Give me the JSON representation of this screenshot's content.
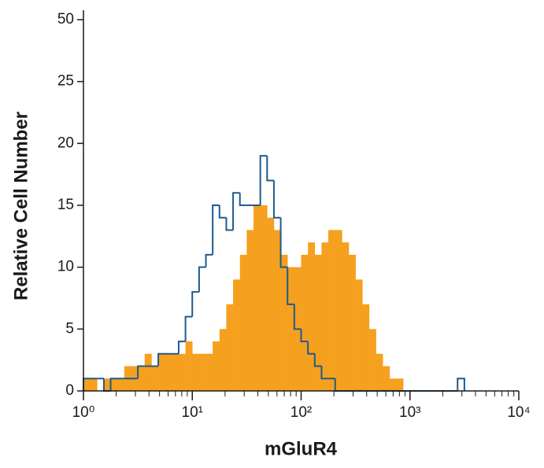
{
  "chart_data": {
    "type": "histogram",
    "xlabel": "mGluR4",
    "ylabel": "Relative Cell Number",
    "xscale": "log",
    "xlim": [
      1,
      10000
    ],
    "ylim": [
      0,
      50
    ],
    "xticks": [
      {
        "value": 1,
        "label": "10⁰"
      },
      {
        "value": 10,
        "label": "10¹"
      },
      {
        "value": 100,
        "label": "10²"
      },
      {
        "value": 1000,
        "label": "10³"
      },
      {
        "value": 10000,
        "label": "10⁴"
      }
    ],
    "minor_xticks": [
      2,
      3,
      4,
      5,
      6,
      7,
      8,
      9,
      20,
      30,
      40,
      50,
      60,
      70,
      80,
      90,
      200,
      300,
      400,
      500,
      600,
      700,
      800,
      900,
      2000,
      3000,
      4000,
      5000,
      6000,
      7000,
      8000,
      9000
    ],
    "yticks": [
      0,
      5,
      10,
      15,
      20,
      25,
      50
    ],
    "bins": [
      1,
      1.155,
      1.334,
      1.54,
      1.778,
      2.054,
      2.371,
      2.738,
      3.162,
      3.652,
      4.217,
      4.87,
      5.623,
      6.494,
      7.499,
      8.66,
      10,
      11.55,
      13.34,
      15.4,
      17.78,
      20.54,
      23.71,
      27.38,
      31.62,
      36.52,
      42.17,
      48.7,
      56.23,
      64.94,
      74.99,
      86.6,
      100,
      115.5,
      133.4,
      154,
      177.8,
      205.4,
      237.1,
      273.8,
      316.2,
      365.2,
      421.7,
      487,
      562.3,
      649.4,
      749.9,
      866,
      1000,
      1155,
      1334,
      1540,
      1778,
      2054,
      2371,
      2738,
      3162
    ],
    "series": [
      {
        "color": "#f5a01e",
        "fill": true,
        "values": [
          1,
          1,
          0,
          1,
          1,
          1,
          2,
          2,
          2,
          3,
          2,
          3,
          3,
          3,
          3,
          4,
          3,
          3,
          3,
          4,
          5,
          7,
          9,
          11,
          13,
          15,
          15,
          14,
          13,
          11,
          10,
          10,
          11,
          12,
          11,
          12,
          13,
          13,
          12,
          11,
          9,
          7,
          5,
          3,
          2,
          1,
          1,
          0,
          0,
          0,
          0,
          0,
          0,
          0,
          0,
          0
        ]
      },
      {
        "color": "#1f5a8c",
        "fill": false,
        "values": [
          1,
          1,
          1,
          0,
          1,
          1,
          1,
          1,
          2,
          2,
          2,
          3,
          3,
          3,
          4,
          6,
          8,
          10,
          11,
          15,
          14,
          13,
          16,
          15,
          15,
          15,
          19,
          17,
          14,
          10,
          7,
          5,
          4,
          3,
          2,
          1,
          1,
          0,
          0,
          0,
          0,
          0,
          0,
          0,
          0,
          0,
          0,
          0,
          0,
          0,
          0,
          0,
          0,
          0,
          0,
          1
        ]
      }
    ]
  }
}
